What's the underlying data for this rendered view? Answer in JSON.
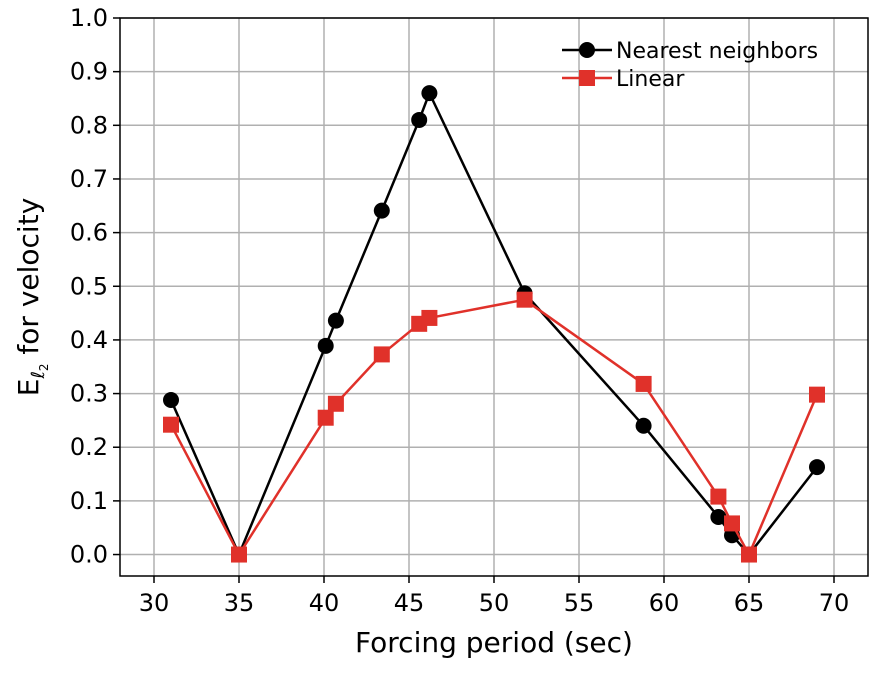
{
  "chart_data": {
    "type": "line",
    "xlabel": "Forcing period (sec)",
    "ylabel": {
      "prefix": "E",
      "subscript": "ℓ",
      "sub_subscript": "2",
      "suffix": " for velocity"
    },
    "xlim": [
      28,
      72
    ],
    "ylim": [
      -0.04,
      1.0
    ],
    "xticks": [
      30,
      35,
      40,
      45,
      50,
      55,
      60,
      65,
      70
    ],
    "yticks": [
      0.0,
      0.1,
      0.2,
      0.3,
      0.4,
      0.5,
      0.6,
      0.7,
      0.8,
      0.9,
      1.0
    ],
    "xtick_labels": [
      "30",
      "35",
      "40",
      "45",
      "50",
      "55",
      "60",
      "65",
      "70"
    ],
    "ytick_labels": [
      "0.0",
      "0.1",
      "0.2",
      "0.3",
      "0.4",
      "0.5",
      "0.6",
      "0.7",
      "0.8",
      "0.9",
      "1.0"
    ],
    "grid": true,
    "legend_position": "top-right",
    "series": [
      {
        "name": "Nearest neighbors",
        "color": "#000000",
        "marker": "circle",
        "x": [
          31,
          35,
          40.1,
          40.7,
          43.4,
          45.6,
          46.2,
          51.8,
          58.8,
          63.2,
          64.0,
          65.0,
          69.0
        ],
        "y": [
          0.288,
          0.0,
          0.389,
          0.436,
          0.641,
          0.81,
          0.86,
          0.487,
          0.24,
          0.07,
          0.036,
          0.0,
          0.163
        ]
      },
      {
        "name": "Linear",
        "color": "#e0312a",
        "marker": "square",
        "x": [
          31,
          35,
          40.1,
          40.7,
          43.4,
          45.6,
          46.2,
          51.8,
          58.8,
          63.2,
          64.0,
          65.0,
          69.0
        ],
        "y": [
          0.242,
          0.0,
          0.255,
          0.281,
          0.373,
          0.43,
          0.441,
          0.475,
          0.318,
          0.108,
          0.058,
          0.0,
          0.298
        ]
      }
    ]
  }
}
